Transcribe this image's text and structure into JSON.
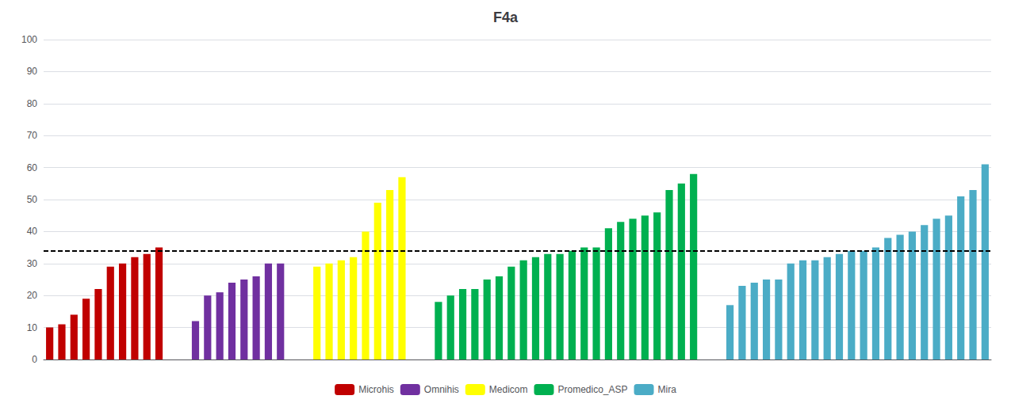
{
  "chart_data": {
    "type": "bar",
    "title": "F4a",
    "series": [
      {
        "name": "Microhis",
        "color": "#c00000",
        "values": [
          10,
          11,
          14,
          19,
          22,
          29,
          30,
          32,
          33,
          35
        ]
      },
      {
        "name": "Omnihis",
        "color": "#7030a0",
        "values": [
          12,
          20,
          21,
          24,
          25,
          26,
          30,
          30
        ]
      },
      {
        "name": "Medicom",
        "color": "#ffff00",
        "values": [
          29,
          30,
          31,
          32,
          40,
          49,
          53,
          57
        ]
      },
      {
        "name": "Promedico_ASP",
        "color": "#00b050",
        "values": [
          18,
          20,
          22,
          22,
          25,
          26,
          29,
          31,
          32,
          33,
          33,
          34,
          35,
          35,
          41,
          43,
          44,
          45,
          46,
          53,
          55,
          58
        ]
      },
      {
        "name": "Mira",
        "color": "#4bacc6",
        "values": [
          17,
          23,
          24,
          25,
          25,
          30,
          31,
          31,
          32,
          33,
          34,
          34,
          35,
          38,
          39,
          40,
          42,
          44,
          45,
          51,
          53,
          61
        ]
      }
    ],
    "hline": 34,
    "ylim": [
      0,
      100
    ],
    "yticks": [
      0,
      10,
      20,
      30,
      40,
      50,
      60,
      70,
      80,
      90,
      100
    ],
    "grid": true,
    "legend": "bottom",
    "tick_labels": "y"
  }
}
